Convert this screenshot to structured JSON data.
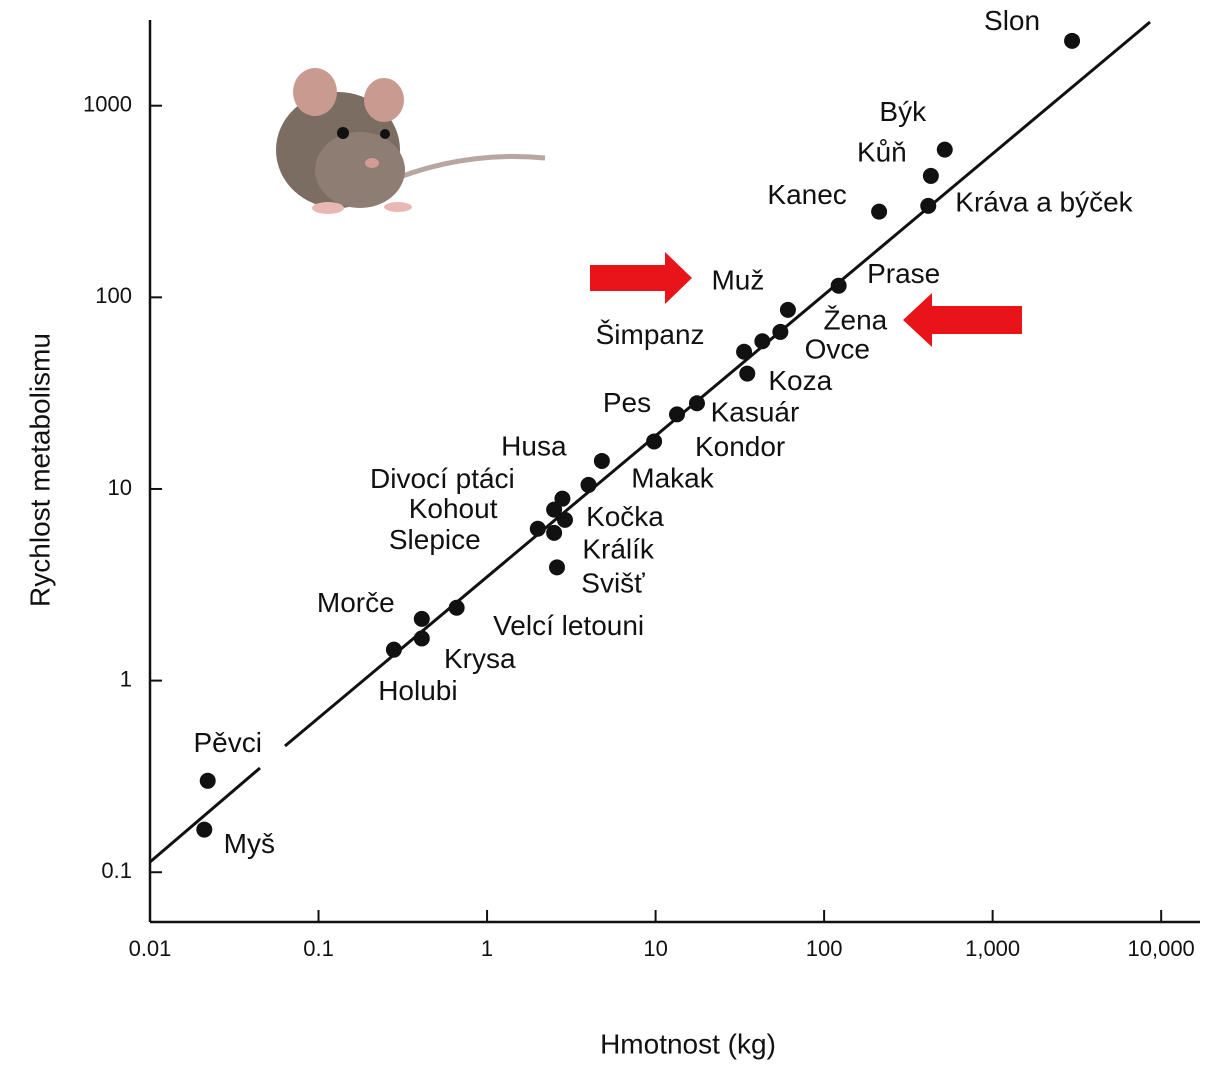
{
  "chart_data": {
    "type": "scatter",
    "xlabel": "Hmotnost (kg)",
    "ylabel": "Rychlost metabolismu",
    "labels": [
      "Slon",
      "Býk",
      "Kůň",
      "Kanec",
      "Kráva a býček",
      "Prase",
      "Muž",
      "Žena",
      "Šimpanz",
      "Ovce",
      "Koza",
      "Kasuár",
      "Pes",
      "Kondor",
      "Husa",
      "Makak",
      "Divocí ptáci",
      "Kohout",
      "Kočka",
      "Slepice",
      "Králík",
      "Svišť",
      "Velcí letouni",
      "Morče",
      "Krysa",
      "Holubi",
      "Pěvci",
      "Myš"
    ],
    "x": [
      2960,
      520,
      430,
      212,
      415,
      122,
      61,
      55,
      33.5,
      43,
      35,
      17.6,
      13.4,
      9.8,
      4.8,
      4.0,
      2.8,
      2.5,
      2.9,
      2.0,
      2.5,
      2.6,
      0.66,
      0.41,
      0.41,
      0.28,
      0.022,
      0.021
    ],
    "values": [
      2180,
      590,
      430,
      280,
      300,
      115,
      86,
      66,
      52,
      59,
      40,
      28,
      24.5,
      17.7,
      14,
      10.5,
      8.9,
      7.8,
      6.9,
      6.2,
      5.9,
      3.9,
      2.4,
      2.1,
      1.66,
      1.45,
      0.3,
      0.167
    ],
    "color": "#111111",
    "log_x": true,
    "log_y": true,
    "xlim": [
      0.01,
      17000
    ],
    "ylim": [
      0.055,
      2800
    ],
    "xticks": [
      0.01,
      0.1,
      1,
      10,
      100,
      {
        "value": 1000,
        "label": "1,000"
      },
      {
        "value": 10000,
        "label": "10,000"
      }
    ],
    "yticks": [
      0.1,
      1,
      10,
      100,
      1000
    ]
  }
}
